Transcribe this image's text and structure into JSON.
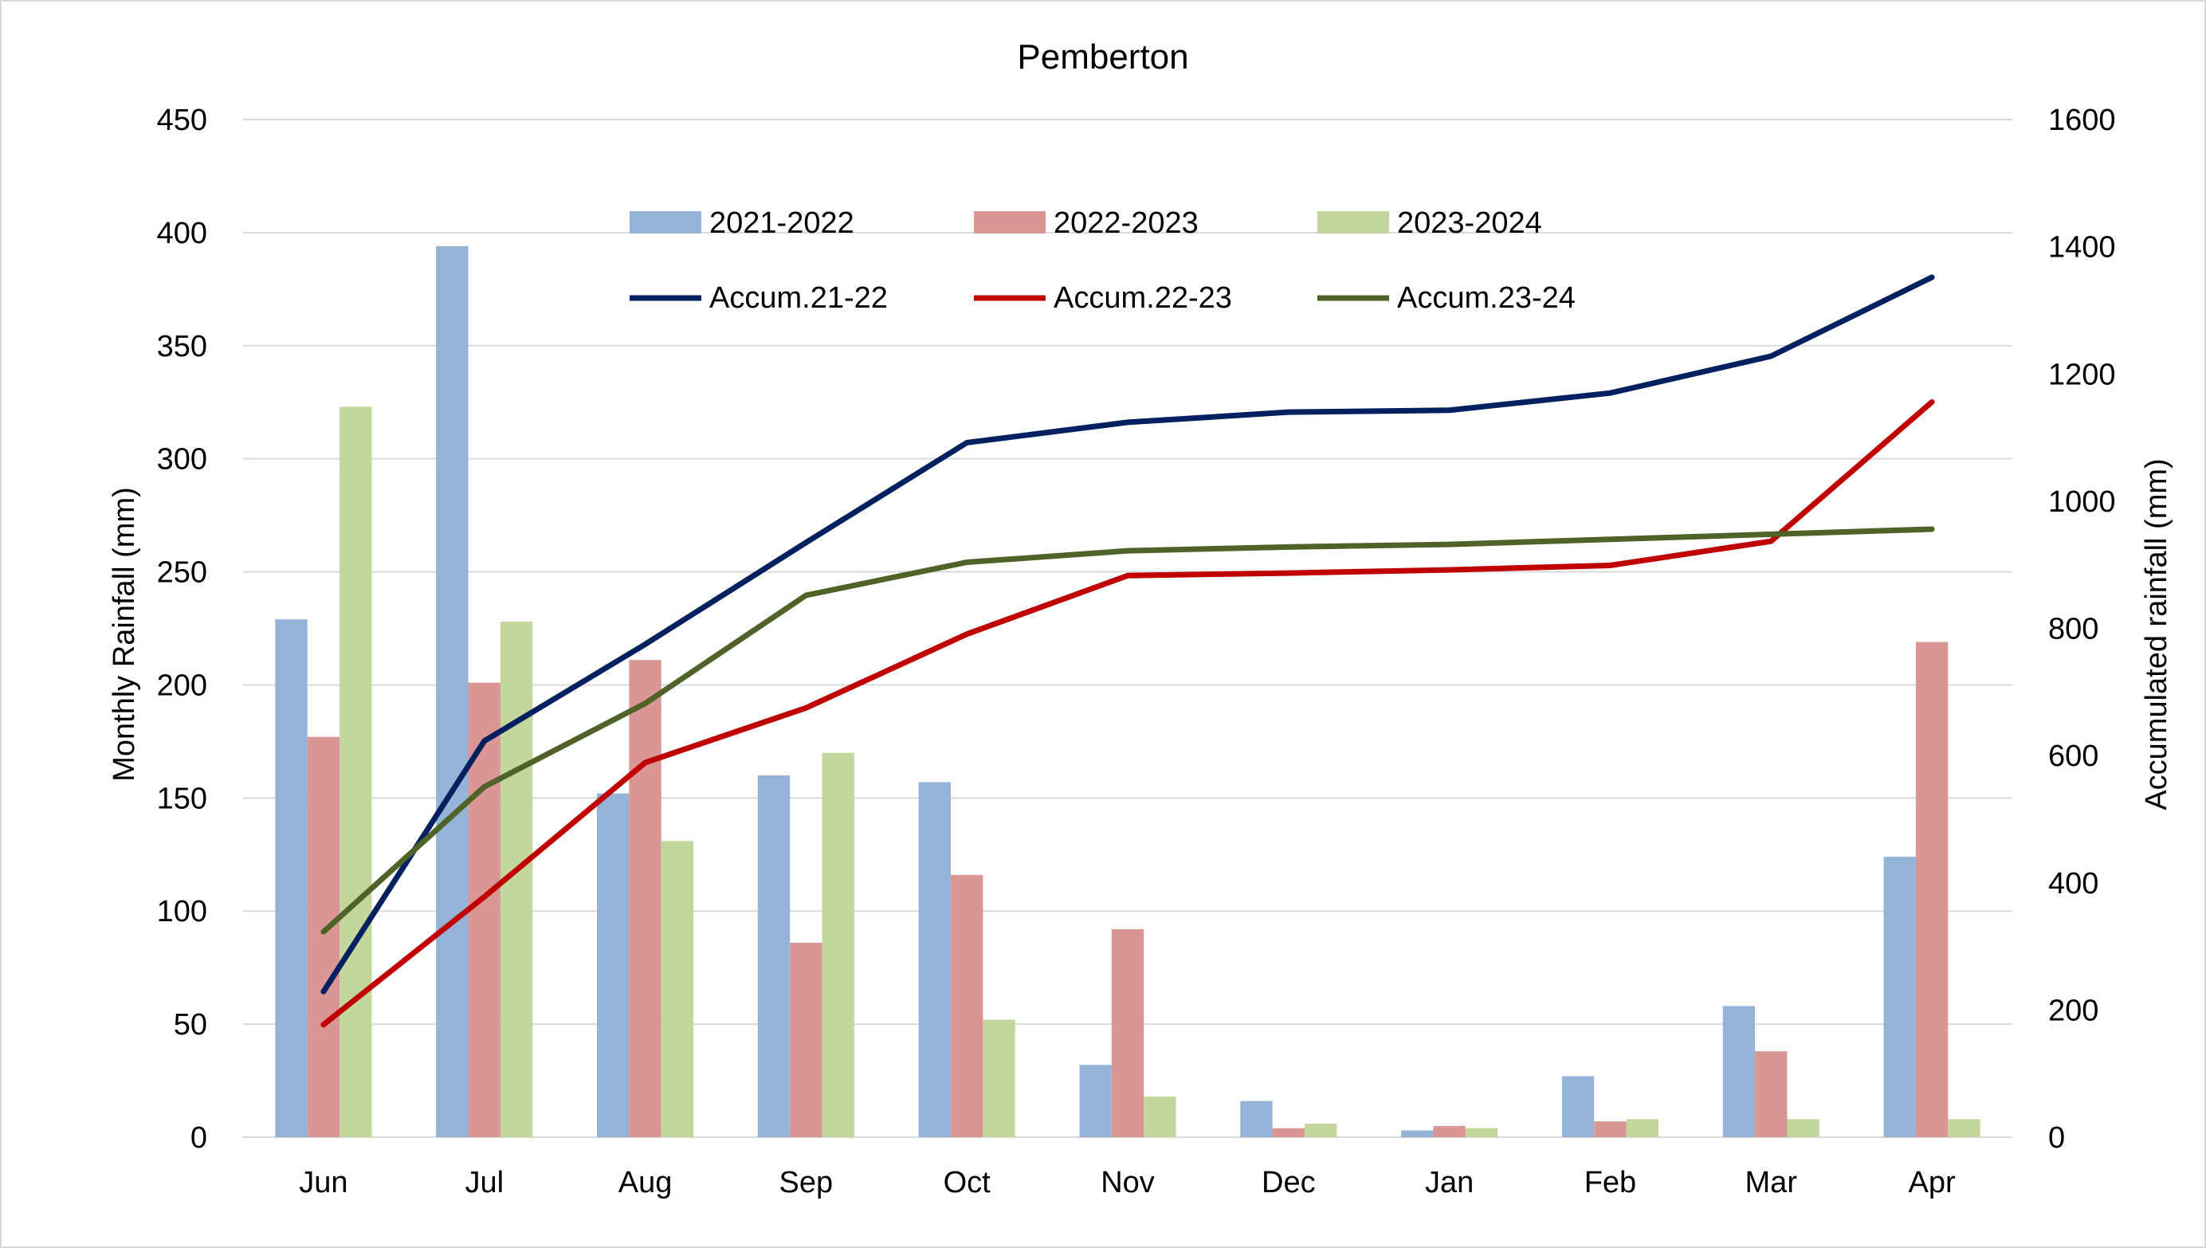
{
  "chart_data": {
    "type": "bar",
    "title": "Pemberton",
    "ylabel": "Monthly Rainfall (mm)",
    "y2label": "Accumulated rainfall (mm)",
    "xlabel": "",
    "categories": [
      "Jun",
      "Jul",
      "Aug",
      "Sep",
      "Oct",
      "Nov",
      "Dec",
      "Jan",
      "Feb",
      "Mar",
      "Apr"
    ],
    "ylim": [
      0,
      450
    ],
    "yticks": [
      "0",
      "50",
      "100",
      "150",
      "200",
      "250",
      "300",
      "350",
      "400",
      "450"
    ],
    "y2lim": [
      0,
      1600
    ],
    "y2ticks": [
      "0",
      "200",
      "400",
      "600",
      "800",
      "1000",
      "1200",
      "1400",
      "1600"
    ],
    "grid": true,
    "legend_position": "top",
    "series": [
      {
        "name": "2021-2022",
        "type": "bar",
        "color": "#95b3d7",
        "values": [
          229,
          394,
          152,
          160,
          157,
          32,
          16,
          3,
          27,
          58,
          124
        ]
      },
      {
        "name": "2022-2023",
        "type": "bar",
        "color": "#d99694",
        "values": [
          177,
          201,
          211,
          86,
          116,
          92,
          4,
          5,
          7,
          38,
          219
        ]
      },
      {
        "name": "2023-2024",
        "type": "bar",
        "color": "#c3d69b",
        "values": [
          323,
          228,
          131,
          170,
          52,
          18,
          6,
          4,
          8,
          8,
          8
        ]
      },
      {
        "name": "Accum.21-22",
        "type": "line",
        "axis": "right",
        "color": "#002060",
        "values": [
          229,
          623,
          775,
          935,
          1092,
          1124,
          1140,
          1143,
          1170,
          1228,
          1352
        ]
      },
      {
        "name": "Accum.22-23",
        "type": "line",
        "axis": "right",
        "color": "#c00000",
        "values": [
          177,
          378,
          589,
          675,
          791,
          883,
          887,
          892,
          899,
          937,
          1156
        ]
      },
      {
        "name": "Accum.23-24",
        "type": "line",
        "axis": "right",
        "color": "#4f6228",
        "values": [
          323,
          551,
          682,
          852,
          904,
          922,
          928,
          932,
          940,
          948,
          956
        ]
      }
    ]
  }
}
